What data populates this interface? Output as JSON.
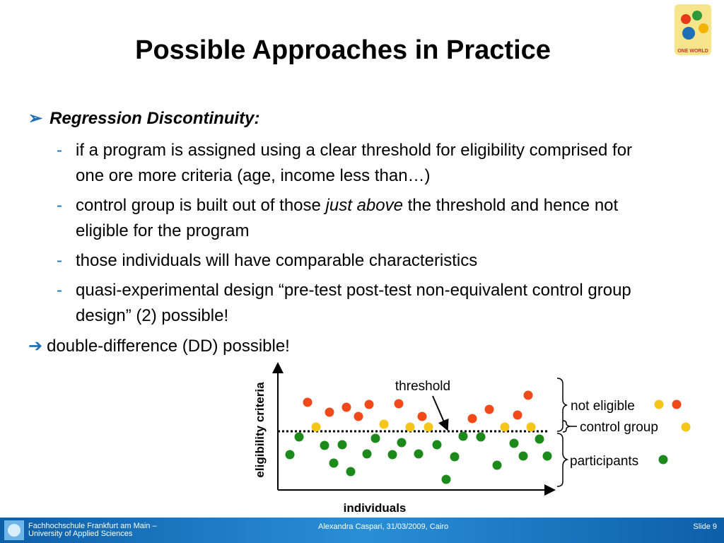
{
  "title": "Possible Approaches in Practice",
  "logo_text": "ONE WORLD",
  "bullets": [
    {
      "heading": "Regression Discontinuity:",
      "items": [
        [
          "if a program is assigned using a clear threshold for eligibility comprised for one ore more criteria (age, income less than…)"
        ],
        [
          "control group is built out of those ",
          "just above",
          " the threshold and hence not eligible for the program"
        ],
        [
          "those individuals will have comparable characteristics"
        ],
        [
          "quasi-experimental design “pre-test post-test non-equivalent control group design” (2) possible!"
        ]
      ]
    }
  ],
  "conclusion": "double-difference (DD) possible!",
  "diagram": {
    "y_axis_label": "eligibility criteria",
    "x_axis_label": "individuals",
    "threshold_label": "threshold",
    "groups": [
      "not eligible",
      "control group",
      "participants"
    ]
  },
  "footer": {
    "institution_line1": "Fachhochschule Frankfurt am Main –",
    "institution_line2": "University of Applied Sciences",
    "author": "Alexandra Caspari, 31/03/2009, Cairo",
    "slide": "Slide 9"
  }
}
